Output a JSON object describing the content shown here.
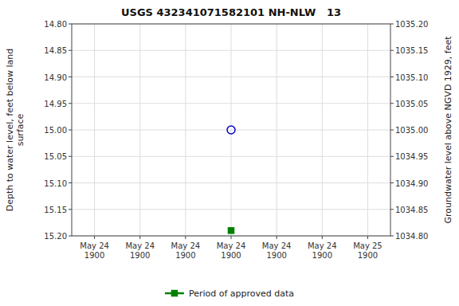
{
  "chart_data": {
    "type": "scatter",
    "title": "USGS 432341071582101 NH-NLW   13",
    "ylabel": "Depth to water level, feet below land\nsurface",
    "y2label": "Groundwater level above NGVD 1929, feet",
    "categories": [
      "May 24\n1900",
      "May 24\n1900",
      "May 24\n1900",
      "May 24\n1900",
      "May 24\n1900",
      "May 24\n1900",
      "May 25\n1900"
    ],
    "series": [
      {
        "color": "#0000cc",
        "marker": "circle-open",
        "values": [
          null,
          null,
          null,
          15.0,
          null,
          null,
          null
        ]
      },
      {
        "name": "Period of approved data",
        "color": "#008000",
        "marker": "square",
        "values": [
          null,
          null,
          null,
          15.19,
          null,
          null,
          null
        ]
      }
    ],
    "ylim": [
      15.2,
      14.8
    ],
    "yticks": [
      {
        "value": 14.8,
        "label": "14.80"
      },
      14.85,
      {
        "value": 14.9,
        "label": "14.90"
      },
      14.95,
      {
        "value": 15.0,
        "label": "15.00"
      },
      15.05,
      {
        "value": 15.1,
        "label": "15.10"
      },
      15.15,
      {
        "value": 15.2,
        "label": "15.20"
      }
    ],
    "y2lim": [
      1034.8,
      1035.2
    ],
    "y2ticks": [
      {
        "value": 1034.8,
        "label": "1034.80"
      },
      1034.85,
      {
        "value": 1034.9,
        "label": "1034.90"
      },
      1034.95,
      {
        "value": 1035.0,
        "label": "1035.00"
      },
      1035.05,
      {
        "value": 1035.1,
        "label": "1035.10"
      },
      1035.15,
      {
        "value": 1035.2,
        "label": "1035.20"
      }
    ],
    "grid": true,
    "legend": "bottom"
  }
}
